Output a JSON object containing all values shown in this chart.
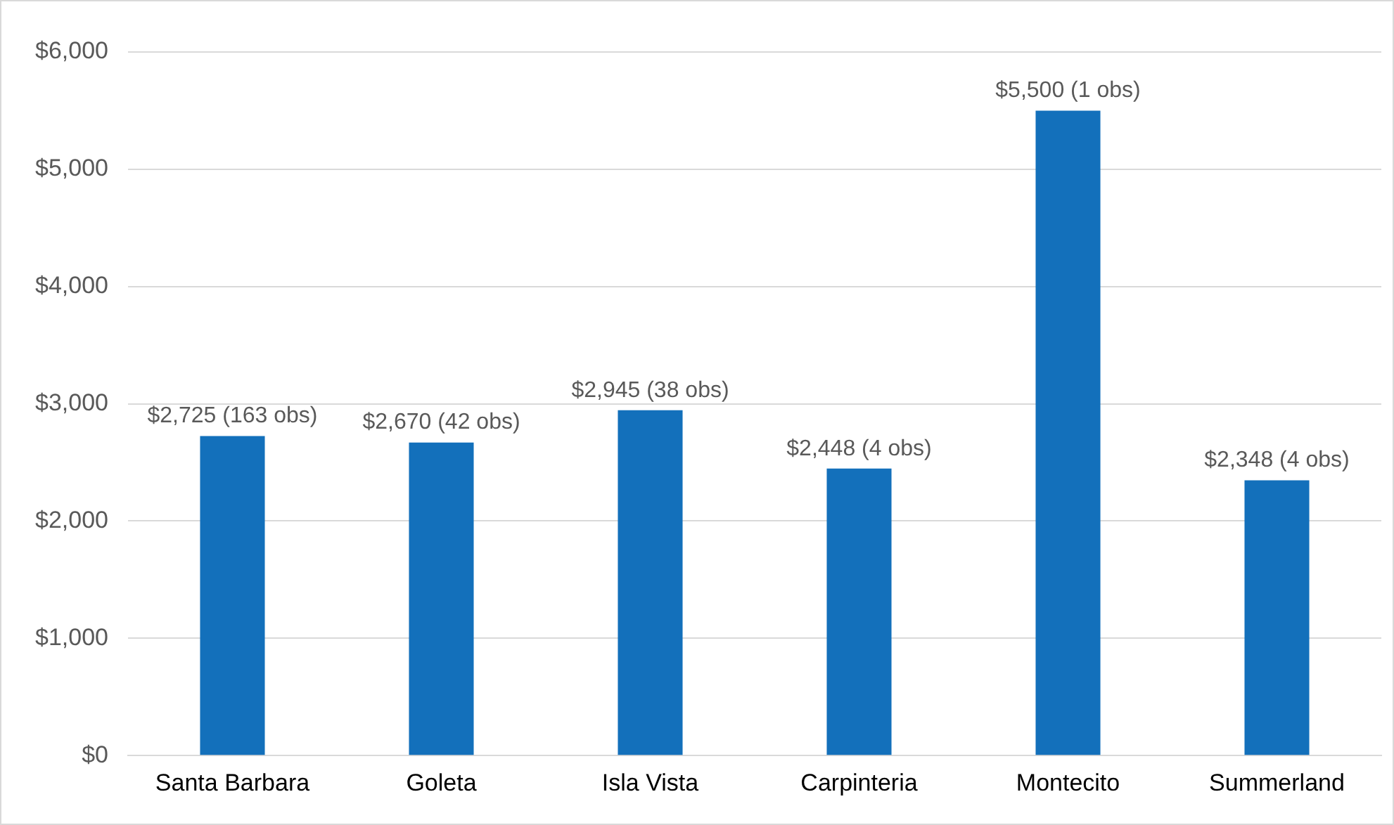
{
  "chart_data": {
    "type": "bar",
    "categories": [
      "Santa Barbara",
      "Goleta",
      "Isla Vista",
      "Carpinteria",
      "Montecito",
      "Summerland"
    ],
    "series": [
      {
        "color": "#1370bb",
        "values": [
          2725,
          2670,
          2945,
          2448,
          5500,
          2348
        ],
        "value_labels": [
          "$2,725 (163 obs)",
          "$2,670 (42 obs)",
          "$2,945 (38 obs)",
          "$2,448 (4 obs)",
          "$5,500 (1 obs)",
          "$2,348 (4 obs)"
        ]
      }
    ],
    "ylim": [
      0,
      6000
    ],
    "yticks": [
      {
        "value": 0,
        "label": "$0"
      },
      {
        "value": 1000,
        "label": "$1,000"
      },
      {
        "value": 2000,
        "label": "$2,000"
      },
      {
        "value": 3000,
        "label": "$3,000"
      },
      {
        "value": 4000,
        "label": "$4,000"
      },
      {
        "value": 5000,
        "label": "$5,000"
      },
      {
        "value": 6000,
        "label": "$6,000"
      }
    ],
    "grid": "y",
    "legend": false
  }
}
